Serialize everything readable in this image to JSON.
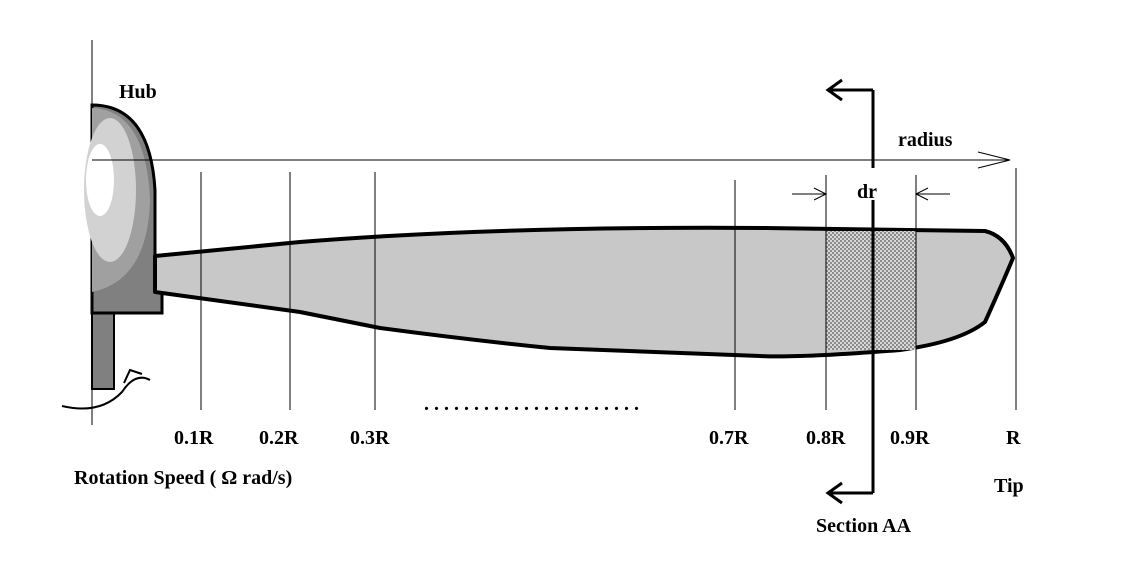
{
  "labels": {
    "hub": "Hub",
    "radius": "radius",
    "dr": "dr",
    "rotation": "Rotation Speed ( Ω rad/s)",
    "tip": "Tip",
    "section": "Section AA",
    "dots": ". . . . . . . . . . . . . . . . . . . . . ."
  },
  "stations": [
    "0.1R",
    "0.2R",
    "0.3R",
    "0.7R",
    "0.8R",
    "0.9R",
    "R"
  ],
  "colors": {
    "blade": "#c8c8c8",
    "hub_dark": "#808080",
    "hub_mid": "#a0a0a0",
    "hub_light": "#d2d2d2",
    "section_hatch": "#8c8c8c",
    "line": "#000000"
  }
}
